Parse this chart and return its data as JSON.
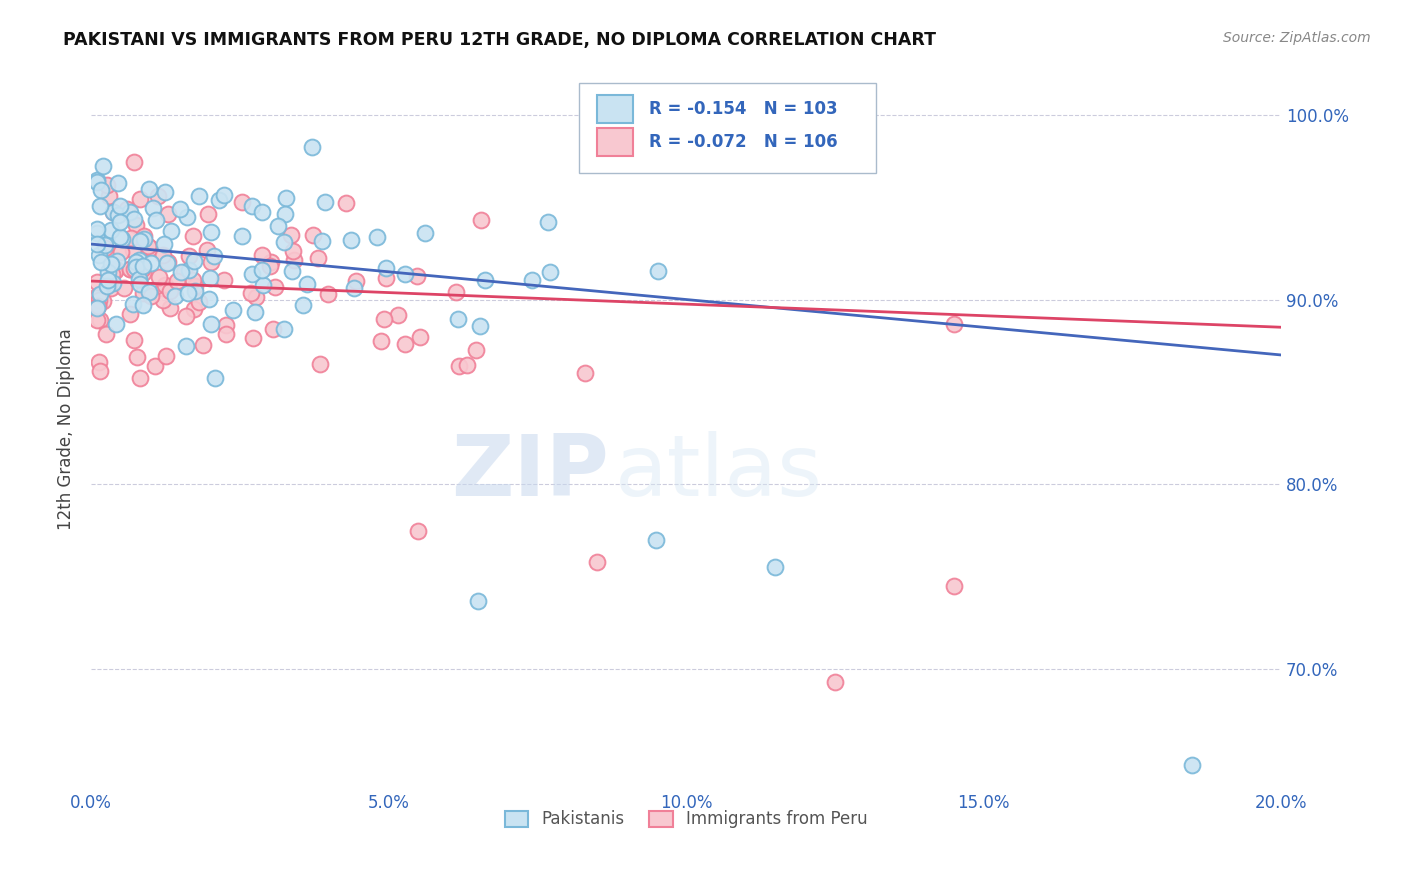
{
  "title": "PAKISTANI VS IMMIGRANTS FROM PERU 12TH GRADE, NO DIPLOMA CORRELATION CHART",
  "source": "Source: ZipAtlas.com",
  "ylabel": "12th Grade, No Diploma",
  "xlim": [
    0.0,
    0.2
  ],
  "ylim": [
    0.635,
    1.025
  ],
  "xtick_labels": [
    "0.0%",
    "5.0%",
    "10.0%",
    "15.0%",
    "20.0%"
  ],
  "xtick_vals": [
    0.0,
    0.05,
    0.1,
    0.15,
    0.2
  ],
  "ytick_labels": [
    "70.0%",
    "80.0%",
    "90.0%",
    "100.0%"
  ],
  "ytick_vals": [
    0.7,
    0.8,
    0.9,
    1.0
  ],
  "blue_color": "#7ab8d9",
  "blue_fill": "#c9e3f2",
  "pink_color": "#f08098",
  "pink_fill": "#f8c8d0",
  "blue_line_color": "#4466bb",
  "pink_line_color": "#dd4466",
  "legend_blue_text": "R = -0.154   N = 103",
  "legend_pink_text": "R = -0.072   N = 106",
  "legend_label_blue": "Pakistanis",
  "legend_label_pink": "Immigrants from Peru",
  "watermark_zip": "ZIP",
  "watermark_atlas": "atlas",
  "blue_intercept": 0.93,
  "blue_slope": -0.3,
  "pink_intercept": 0.91,
  "pink_slope": -0.125
}
